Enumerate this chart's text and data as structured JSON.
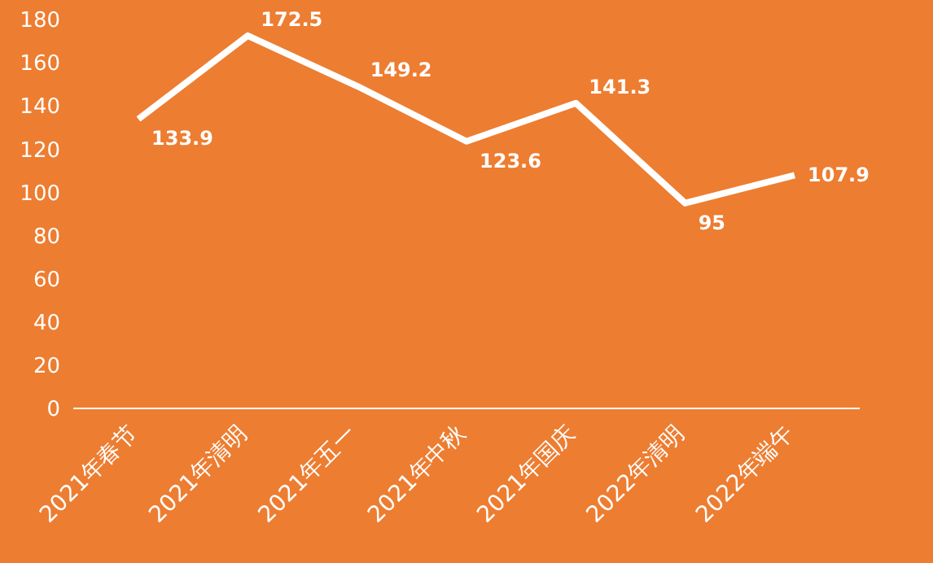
{
  "chart_data": {
    "type": "line",
    "categories": [
      "2021年春节",
      "2021年清明",
      "2021年五一",
      "2021年中秋",
      "2021年国庆",
      "2022年清明",
      "2022年端午"
    ],
    "series": [
      {
        "color": "#ffffff",
        "values": [
          133.9,
          172.5,
          149.2,
          123.6,
          141.3,
          95,
          107.9
        ]
      }
    ],
    "ylim": [
      0,
      180
    ],
    "yticks": [
      0,
      20,
      40,
      60,
      80,
      100,
      120,
      140,
      160,
      180
    ],
    "grid": false,
    "legend": false,
    "marker": "none",
    "line_style": "solid",
    "data_labels": true
  }
}
